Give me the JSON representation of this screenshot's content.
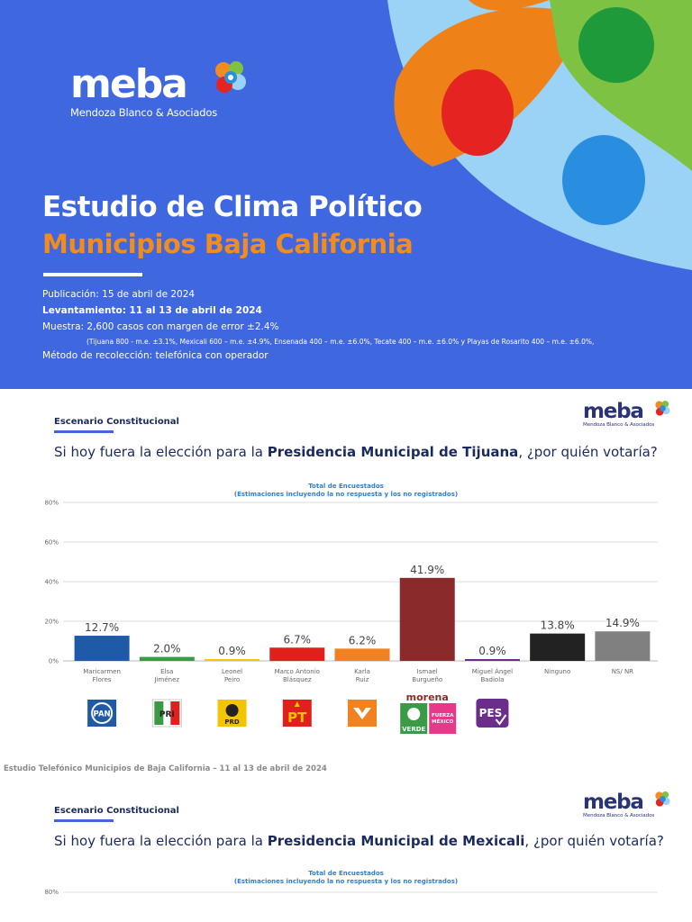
{
  "cover": {
    "logo_word": "meba",
    "logo_sub": "Mendoza Blanco & Asociados",
    "title": "Estudio de Clima Político",
    "subtitle": "Municipios Baja California",
    "publicacion": "Publicación: 15 de abril de 2024",
    "levantamiento": "Levantamiento: 11 al 13 de abril de 2024",
    "muestra": "Muestra: 2,600 casos con margen de error ±2.4%",
    "muestra_detalle": "(Tijuana 800 - m.e. ±3.1%, Mexicali 600 – m.e. ±4.9%, Ensenada 400 – m.e. ±6.0%, Tecate 400 – m.e. ±6.0% y Playas de Rosarito 400 – m.e. ±6.0%,",
    "metodo": "Método de recolección: telefónica con operador"
  },
  "slide1": {
    "section": "Escenario Constitucional",
    "question_pre": "Si hoy fuera la elección para la ",
    "question_bold": "Presidencia Municipal de Tijuana",
    "question_post": ", ¿por quién votaría?",
    "chart_title_1": "Total de Encuestados",
    "chart_title_2": "(Estimaciones incluyendo la no respuesta y los no registrados)",
    "logo_word": "meba",
    "logo_sub": "Mendoza Blanco & Asociados"
  },
  "footer": "Estudio Telefónico Municipios de Baja California – 11 al 13 de abril de 2024",
  "slide2": {
    "section": "Escenario Constitucional",
    "question_pre": "Si hoy fuera la elección para la ",
    "question_bold": "Presidencia Municipal de Mexicali",
    "question_post": ", ¿por quién votaría?",
    "chart_title_1": "Total de Encuestados",
    "chart_title_2": "(Estimaciones incluyendo la no respuesta y los no registrados)",
    "y_top_label": "80%",
    "logo_word": "meba",
    "logo_sub": "Mendoza Blanco & Asociados"
  },
  "party_labels": {
    "pan": "PAN",
    "pri": "PRI",
    "prd": "PRD",
    "pt": "PT",
    "morena": "morena",
    "verde": "VERDE",
    "fxm_1": "FUERZA",
    "fxm_2": "MÉXICO",
    "pes": "PES"
  },
  "chart_data": {
    "type": "bar",
    "title": "Total de Encuestados",
    "subtitle": "(Estimaciones incluyendo la no respuesta y los no registrados)",
    "categories": [
      [
        "Maricarmen",
        "Flores"
      ],
      [
        "Elsa",
        "Jiménez"
      ],
      [
        "Leonel",
        "Peiro"
      ],
      [
        "Marco Antonio",
        "Blásquez"
      ],
      [
        "Karla",
        "Ruiz"
      ],
      [
        "Ismael",
        "Burgueño"
      ],
      [
        "Miguel Ángel",
        "Badiola"
      ],
      [
        "Ninguno"
      ],
      [
        "NS/ NR"
      ]
    ],
    "values": [
      12.7,
      2.0,
      0.9,
      6.7,
      6.2,
      41.9,
      0.9,
      13.8,
      14.9
    ],
    "value_labels": [
      "12.7%",
      "2.0%",
      "0.9%",
      "6.7%",
      "6.2%",
      "41.9%",
      "0.9%",
      "13.8%",
      "14.9%"
    ],
    "colors": [
      "#1e5aa8",
      "#3a9a45",
      "#f2c500",
      "#e0201c",
      "#f28220",
      "#8b2a2a",
      "#6a2d8a",
      "#222222",
      "#808080"
    ],
    "parties": [
      "PAN",
      "PRI",
      "PRD",
      "PT",
      "MC",
      "MORENA / VERDE / FUERZA MÉXICO",
      "PES",
      "",
      ""
    ],
    "yticks": [
      "0%",
      "20%",
      "40%",
      "60%",
      "80%"
    ],
    "ylim": [
      0,
      80
    ],
    "grid": true
  }
}
